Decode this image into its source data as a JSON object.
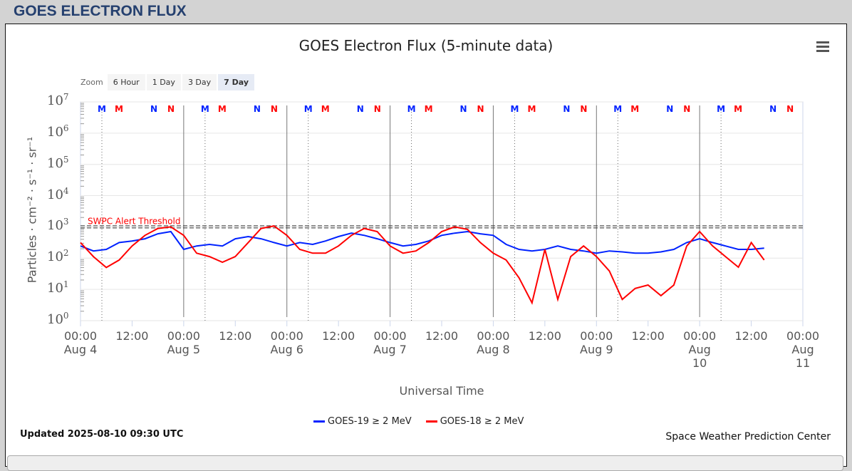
{
  "header": "GOES ELECTRON FLUX",
  "chart_data": {
    "type": "line",
    "title": "GOES Electron Flux (5-minute data)",
    "xlabel": "Universal Time",
    "ylabel": "Particles · cm⁻² · s⁻¹ · sr⁻¹",
    "yscale": "log",
    "ylim": [
      1,
      10000000
    ],
    "y_ticks": [
      "10",
      "10",
      "10",
      "10",
      "10",
      "10",
      "10",
      "10"
    ],
    "y_exps": [
      "0",
      "1",
      "2",
      "3",
      "4",
      "5",
      "6",
      "7"
    ],
    "x_ticks": [
      [
        "00:00",
        "Aug 4"
      ],
      [
        "12:00",
        ""
      ],
      [
        "00:00",
        "Aug 5"
      ],
      [
        "12:00",
        ""
      ],
      [
        "00:00",
        "Aug 6"
      ],
      [
        "12:00",
        ""
      ],
      [
        "00:00",
        "Aug 7"
      ],
      [
        "12:00",
        ""
      ],
      [
        "00:00",
        "Aug 8"
      ],
      [
        "12:00",
        ""
      ],
      [
        "00:00",
        "Aug 9"
      ],
      [
        "12:00",
        ""
      ],
      [
        "00:00",
        "Aug 10"
      ],
      [
        "12:00",
        ""
      ],
      [
        "00:00",
        "Aug 11"
      ]
    ],
    "x_hours_step": 3,
    "threshold": {
      "label": "SWPC Alert Threshold",
      "value": 1000
    },
    "markers": [
      "M",
      "M",
      "N",
      "N"
    ],
    "series": [
      {
        "name": "GOES-19 ≥ 2 MeV",
        "color": "#0022ff",
        "log10": [
          2.39,
          2.23,
          2.28,
          2.5,
          2.55,
          2.62,
          2.78,
          2.85,
          2.28,
          2.39,
          2.44,
          2.39,
          2.62,
          2.69,
          2.62,
          2.5,
          2.39,
          2.5,
          2.44,
          2.55,
          2.69,
          2.8,
          2.73,
          2.62,
          2.5,
          2.39,
          2.44,
          2.55,
          2.73,
          2.8,
          2.85,
          2.78,
          2.73,
          2.44,
          2.28,
          2.23,
          2.28,
          2.39,
          2.28,
          2.23,
          2.16,
          2.23,
          2.2,
          2.16,
          2.16,
          2.2,
          2.28,
          2.5,
          2.62,
          2.5,
          2.39,
          2.28,
          2.28,
          2.32
        ]
      },
      {
        "name": "GOES-18 ≥ 2 MeV",
        "color": "#ff0000",
        "log10": [
          2.5,
          2.05,
          1.7,
          1.94,
          2.39,
          2.73,
          2.95,
          3.0,
          2.73,
          2.16,
          2.05,
          1.87,
          2.05,
          2.5,
          2.95,
          3.03,
          2.73,
          2.28,
          2.16,
          2.16,
          2.39,
          2.73,
          2.95,
          2.85,
          2.39,
          2.16,
          2.23,
          2.5,
          2.85,
          3.0,
          2.92,
          2.5,
          2.16,
          1.94,
          1.37,
          0.57,
          2.28,
          0.68,
          2.05,
          2.39,
          2.05,
          1.59,
          0.68,
          1.03,
          1.14,
          0.8,
          1.14,
          2.39,
          2.85,
          2.39,
          2.05,
          1.71,
          2.5,
          1.94
        ]
      }
    ]
  },
  "legend": [
    "GOES-19 ≥ 2 MeV",
    "GOES-18 ≥ 2 MeV"
  ],
  "zoom": {
    "label": "Zoom",
    "buttons": [
      "6 Hour",
      "1 Day",
      "3 Day",
      "7 Day"
    ],
    "active": "7 Day"
  },
  "updated": "Updated 2025-08-10 09:30 UTC",
  "credit": "Space Weather Prediction Center"
}
